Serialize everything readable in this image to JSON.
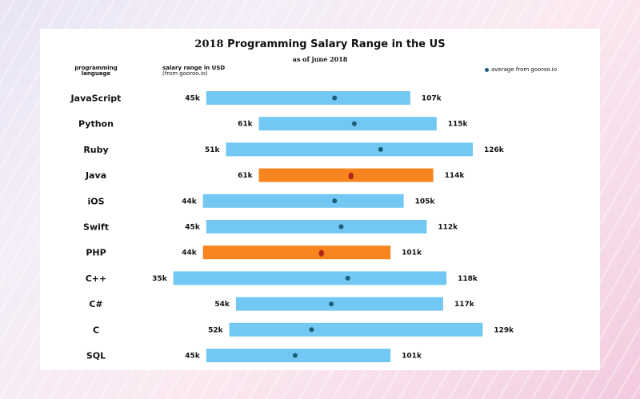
{
  "chart_data": {
    "type": "bar",
    "title_year": "2018",
    "title_text": "Programming Salary Range in the US",
    "subtitle": "as of june 2018",
    "col_language_line1": "programming",
    "col_language_line2": "language",
    "col_salary_line1": "salary range in USD",
    "col_salary_line2": "(from gooroo.io)",
    "legend": "average from gooroo.io",
    "xlim": [
      20,
      135
    ],
    "series": [
      {
        "name": "JavaScript",
        "min": 45,
        "max": 107,
        "avg": 84,
        "min_label": "45k",
        "max_label": "107k",
        "highlight": false
      },
      {
        "name": "Python",
        "min": 61,
        "max": 115,
        "avg": 90,
        "min_label": "61k",
        "max_label": "115k",
        "highlight": false
      },
      {
        "name": "Ruby",
        "min": 51,
        "max": 126,
        "avg": 98,
        "min_label": "51k",
        "max_label": "126k",
        "highlight": false
      },
      {
        "name": "Java",
        "min": 61,
        "max": 114,
        "avg": 89,
        "min_label": "61k",
        "max_label": "114k",
        "highlight": true
      },
      {
        "name": "iOS",
        "min": 44,
        "max": 105,
        "avg": 84,
        "min_label": "44k",
        "max_label": "105k",
        "highlight": false
      },
      {
        "name": "Swift",
        "min": 45,
        "max": 112,
        "avg": 86,
        "min_label": "45k",
        "max_label": "112k",
        "highlight": false
      },
      {
        "name": "PHP",
        "min": 44,
        "max": 101,
        "avg": 80,
        "min_label": "44k",
        "max_label": "101k",
        "highlight": true
      },
      {
        "name": "C++",
        "min": 35,
        "max": 118,
        "avg": 88,
        "min_label": "35k",
        "max_label": "118k",
        "highlight": false
      },
      {
        "name": "C#",
        "min": 54,
        "max": 117,
        "avg": 83,
        "min_label": "54k",
        "max_label": "117k",
        "highlight": false
      },
      {
        "name": "C",
        "min": 52,
        "max": 129,
        "avg": 77,
        "min_label": "52k",
        "max_label": "129k",
        "highlight": false
      },
      {
        "name": "SQL",
        "min": 45,
        "max": 101,
        "avg": 72,
        "min_label": "45k",
        "max_label": "101k",
        "highlight": false
      }
    ]
  },
  "colors": {
    "bar": "#72c8f2",
    "bar_highlight": "#f7841e",
    "avg_dot": "#1a5f7a",
    "avg_dot_highlight": "#b0251e"
  }
}
